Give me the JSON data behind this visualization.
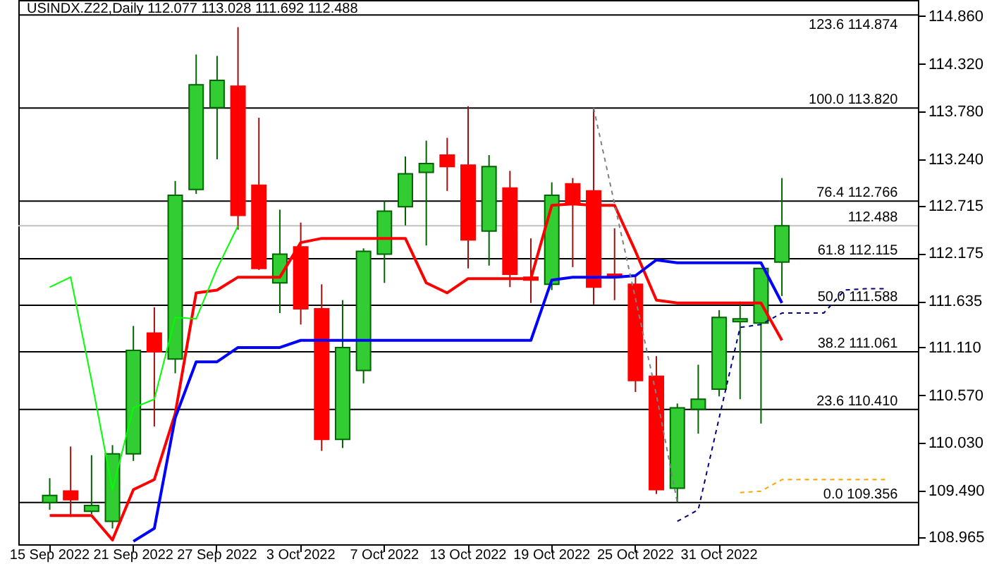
{
  "chart_data": {
    "type": "candlestick",
    "title": "USINDX.Z22,Daily  112.077 113.028 111.692 112.488",
    "categories": [
      "15 Sep 2022",
      null,
      null,
      null,
      "21 Sep 2022",
      null,
      null,
      null,
      "27 Sep 2022",
      null,
      null,
      null,
      "3 Oct 2022",
      null,
      null,
      null,
      "7 Oct 2022",
      null,
      null,
      null,
      "13 Oct 2022",
      null,
      null,
      null,
      "19 Oct 2022",
      null,
      null,
      null,
      "25 Oct 2022",
      null,
      null,
      null,
      "31 Oct 2022",
      null,
      null,
      null,
      null,
      null,
      null,
      null,
      null
    ],
    "ohlc": [
      [
        109.355,
        109.631,
        109.273,
        109.436
      ],
      [
        109.485,
        109.989,
        109.192,
        109.387
      ],
      [
        109.257,
        109.891,
        109.225,
        109.322
      ],
      [
        109.143,
        110.005,
        109.062,
        109.907
      ],
      [
        109.907,
        111.354,
        109.826,
        111.078
      ],
      [
        111.273,
        111.565,
        110.216,
        111.061
      ],
      [
        110.98,
        112.995,
        110.817,
        112.833
      ],
      [
        112.898,
        114.426,
        112.849,
        114.084
      ],
      [
        113.824,
        114.41,
        113.239,
        114.133
      ],
      [
        114.068,
        114.735,
        112.443,
        112.605
      ],
      [
        112.947,
        113.711,
        111.988,
        112.004
      ],
      [
        111.841,
        112.67,
        111.5,
        112.167
      ],
      [
        112.248,
        112.524,
        111.37,
        111.549
      ],
      [
        111.549,
        111.825,
        109.94,
        110.07
      ],
      [
        110.07,
        111.646,
        109.972,
        111.11
      ],
      [
        110.85,
        112.232,
        110.704,
        112.199
      ],
      [
        112.167,
        112.768,
        111.841,
        112.654
      ],
      [
        112.703,
        113.272,
        112.492,
        113.077
      ],
      [
        113.093,
        113.451,
        112.264,
        113.191
      ],
      [
        113.288,
        113.483,
        112.882,
        113.158
      ],
      [
        113.174,
        113.841,
        112.004,
        112.329
      ],
      [
        112.427,
        113.288,
        112.037,
        113.158
      ],
      [
        112.914,
        113.109,
        111.793,
        111.939
      ],
      [
        111.906,
        112.345,
        111.614,
        111.874
      ],
      [
        111.825,
        112.979,
        111.76,
        112.833
      ],
      [
        112.963,
        113.028,
        112.02,
        112.752
      ],
      [
        112.882,
        113.824,
        111.598,
        111.793
      ],
      [
        111.939,
        112.459,
        111.646,
        111.906
      ],
      [
        111.825,
        111.939,
        110.606,
        110.736
      ],
      [
        110.785,
        111.012,
        109.452,
        109.501
      ],
      [
        109.517,
        110.476,
        109.355,
        110.427
      ],
      [
        110.411,
        110.915,
        110.135,
        110.525
      ],
      [
        110.639,
        111.533,
        110.557,
        111.451
      ],
      [
        111.403,
        111.63,
        110.525,
        111.435
      ],
      [
        111.386,
        112.004,
        110.249,
        112.004
      ],
      [
        112.077,
        113.028,
        111.692,
        112.488
      ],
      null,
      null,
      null,
      null,
      null
    ],
    "colors": [
      "#32cd32",
      "#ff0000",
      "#32cd32",
      "#32cd32",
      "#32cd32",
      "#ff0000",
      "#32cd32",
      "#32cd32",
      "#32cd32",
      "#ff0000",
      "#ff0000",
      "#32cd32",
      "#ff0000",
      "#ff0000",
      "#32cd32",
      "#32cd32",
      "#32cd32",
      "#32cd32",
      "#32cd32",
      "#ff0000",
      "#ff0000",
      "#32cd32",
      "#ff0000",
      "#ff0000",
      "#32cd32",
      "#ff0000",
      "#ff0000",
      "#ff0000",
      "#ff0000",
      "#ff0000",
      "#32cd32",
      "#32cd32",
      "#32cd32",
      "#32cd32",
      "#32cd32",
      "#32cd32",
      null,
      null,
      null,
      null,
      null
    ],
    "series": [
      {
        "type": "line",
        "color": "#ff0000",
        "line_style": "solid",
        "values": [
          109.208,
          109.208,
          109.208,
          108.932,
          109.501,
          109.615,
          110.362,
          111.728,
          111.76,
          111.906,
          111.906,
          111.906,
          112.297,
          112.345,
          112.345,
          112.345,
          112.345,
          112.345,
          111.841,
          111.728,
          111.89,
          111.89,
          111.89,
          111.89,
          112.719,
          112.735,
          112.719,
          112.719,
          112.199,
          111.646,
          111.614,
          111.614,
          111.614,
          111.614,
          111.614,
          111.191,
          null,
          null,
          null,
          null,
          null
        ]
      },
      {
        "type": "line",
        "color": "#0000ff",
        "line_style": "solid",
        "values": [
          null,
          null,
          null,
          null,
          108.916,
          109.062,
          110.314,
          110.948,
          110.948,
          111.11,
          111.11,
          111.11,
          111.191,
          111.191,
          111.191,
          111.191,
          111.191,
          111.191,
          111.191,
          111.191,
          111.191,
          111.191,
          111.191,
          111.191,
          111.874,
          111.906,
          111.906,
          111.906,
          111.923,
          112.101,
          112.069,
          112.069,
          112.069,
          112.069,
          112.069,
          111.614,
          null,
          null,
          null,
          null,
          null
        ]
      },
      {
        "type": "line",
        "color": "#00ff00",
        "line_style": "solid",
        "values": [
          111.793,
          111.906,
          110.736,
          109.501,
          110.427,
          110.525,
          111.451,
          111.435,
          112.004,
          112.488,
          null,
          null,
          null,
          null,
          null,
          null,
          null,
          null,
          null,
          null,
          null,
          null,
          null,
          null,
          null,
          null,
          null,
          null,
          null,
          null,
          null,
          null,
          null,
          null,
          null,
          null,
          null,
          null,
          null,
          null,
          null
        ]
      },
      {
        "type": "line",
        "color": "#808080",
        "line_style": "dashed",
        "values": [
          null,
          null,
          null,
          null,
          null,
          null,
          null,
          null,
          null,
          null,
          null,
          null,
          null,
          null,
          null,
          null,
          null,
          null,
          null,
          null,
          null,
          null,
          null,
          null,
          null,
          null,
          113.82,
          112.735,
          111.663,
          110.574,
          109.356,
          null,
          null,
          null,
          null,
          null,
          null,
          null,
          null,
          null,
          null
        ]
      },
      {
        "type": "line",
        "color": "#000080",
        "line_style": "dashed",
        "values": [
          null,
          null,
          null,
          null,
          null,
          null,
          null,
          null,
          null,
          null,
          null,
          null,
          null,
          null,
          null,
          null,
          null,
          null,
          null,
          null,
          null,
          null,
          null,
          null,
          null,
          null,
          null,
          null,
          null,
          null,
          109.143,
          109.273,
          110.314,
          111.338,
          111.37,
          111.5,
          111.5,
          111.5,
          111.76,
          111.776,
          111.776
        ]
      },
      {
        "type": "line",
        "color": "#ffa500",
        "line_style": "dashed",
        "values": [
          null,
          null,
          null,
          null,
          null,
          null,
          null,
          null,
          null,
          null,
          null,
          null,
          null,
          null,
          null,
          null,
          null,
          null,
          null,
          null,
          null,
          null,
          null,
          null,
          null,
          null,
          null,
          null,
          null,
          null,
          null,
          null,
          null,
          109.468,
          109.484,
          109.615,
          109.615,
          109.615,
          109.615,
          109.615,
          109.615
        ]
      }
    ],
    "ref_lines": [
      {
        "axis": "y",
        "value": 114.874,
        "label": "123.6 114.874",
        "color": "#000000"
      },
      {
        "axis": "y",
        "value": 113.82,
        "label": "100.0 113.820",
        "color": "#000000"
      },
      {
        "axis": "y",
        "value": 112.766,
        "label": "76.4 112.766",
        "color": "#000000"
      },
      {
        "axis": "y",
        "value": 112.115,
        "label": "61.8 112.115",
        "color": "#000000"
      },
      {
        "axis": "y",
        "value": 111.588,
        "label": "50.0 111.588",
        "color": "#000000"
      },
      {
        "axis": "y",
        "value": 111.061,
        "label": "38.2 111.061",
        "color": "#000000"
      },
      {
        "axis": "y",
        "value": 110.41,
        "label": "23.6 110.410",
        "color": "#000000"
      },
      {
        "axis": "y",
        "value": 109.356,
        "label": "0.0 109.356",
        "color": "#000000"
      },
      {
        "axis": "y",
        "value": 112.488,
        "label": "112.488",
        "color": "#c0c0c0"
      }
    ],
    "ylim": [
      108.883,
      115.043
    ],
    "yticks": [
      {
        "value": 108.965,
        "label": "108.965"
      },
      {
        "value": 109.49,
        "label": "109.490"
      },
      {
        "value": 110.03,
        "label": "110.030"
      },
      {
        "value": 110.57,
        "label": "110.570"
      },
      {
        "value": 111.11,
        "label": "111.110"
      },
      {
        "value": 111.635,
        "label": "111.635"
      },
      {
        "value": 112.175,
        "label": "112.175"
      },
      {
        "value": 112.715,
        "label": "112.715"
      },
      {
        "value": 113.24,
        "label": "113.240"
      },
      {
        "value": 113.78,
        "label": "113.780"
      },
      {
        "value": 114.32,
        "label": "114.320"
      },
      {
        "value": 114.86,
        "label": "114.860"
      }
    ],
    "grid": false
  }
}
